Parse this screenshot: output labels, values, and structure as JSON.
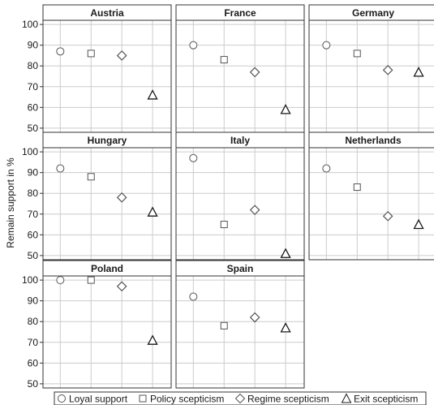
{
  "chart_data": {
    "type": "scatter",
    "ylabel": "Remain support in %",
    "ylim": [
      48,
      102
    ],
    "yticks": [
      50,
      60,
      70,
      80,
      90,
      100
    ],
    "grid": true,
    "legend_position": "bottom",
    "series": [
      {
        "name": "Loyal support",
        "marker": "circle"
      },
      {
        "name": "Policy scepticism",
        "marker": "square"
      },
      {
        "name": "Regime scepticism",
        "marker": "diamond"
      },
      {
        "name": "Exit scepticism",
        "marker": "triangle"
      }
    ],
    "panels": [
      {
        "title": "Austria",
        "values": [
          87,
          86,
          85,
          66
        ]
      },
      {
        "title": "France",
        "values": [
          90,
          83,
          77,
          59
        ]
      },
      {
        "title": "Germany",
        "values": [
          90,
          86,
          78,
          77
        ]
      },
      {
        "title": "Hungary",
        "values": [
          92,
          88,
          78,
          71
        ]
      },
      {
        "title": "Italy",
        "values": [
          97,
          65,
          72,
          51
        ]
      },
      {
        "title": "Netherlands",
        "values": [
          92,
          83,
          69,
          65
        ]
      },
      {
        "title": "Poland",
        "values": [
          100,
          100,
          97,
          71
        ]
      },
      {
        "title": "Spain",
        "values": [
          92,
          78,
          82,
          77
        ]
      }
    ],
    "colors": {
      "marker_stroke": "#555555",
      "triangle_stroke": "#1a1a1a",
      "grid": "#cccccc",
      "panel_border": "#333333"
    }
  }
}
